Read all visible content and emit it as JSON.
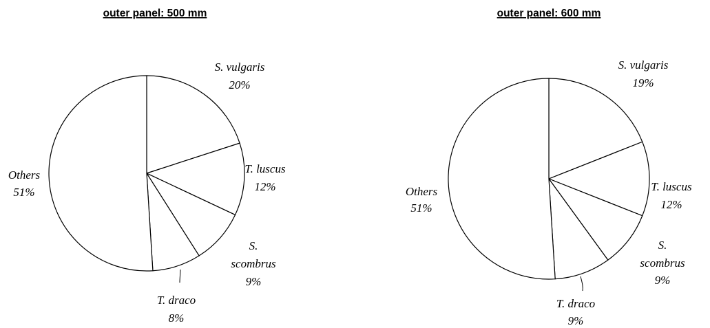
{
  "chart_data": [
    {
      "type": "pie",
      "title": "outer panel: 500 mm",
      "slices": [
        {
          "label_lines": [
            "S. vulgaris"
          ],
          "value": 20,
          "percent_label": "20%"
        },
        {
          "label_lines": [
            "T. luscus"
          ],
          "value": 12,
          "percent_label": "12%"
        },
        {
          "label_lines": [
            "S.",
            "scombrus"
          ],
          "value": 9,
          "percent_label": "9%"
        },
        {
          "label_lines": [
            "T. draco"
          ],
          "value": 8,
          "percent_label": "8%"
        },
        {
          "label_lines": [
            "Others"
          ],
          "value": 51,
          "percent_label": "51%"
        }
      ],
      "slice_fill": "#ffffff",
      "edge_color": "#000000"
    },
    {
      "type": "pie",
      "title": "outer panel: 600 mm",
      "slices": [
        {
          "label_lines": [
            "S. vulgaris"
          ],
          "value": 19,
          "percent_label": "19%"
        },
        {
          "label_lines": [
            "T. luscus"
          ],
          "value": 12,
          "percent_label": "12%"
        },
        {
          "label_lines": [
            "S.",
            "scombrus"
          ],
          "value": 9,
          "percent_label": "9%"
        },
        {
          "label_lines": [
            "T. draco"
          ],
          "value": 9,
          "percent_label": "9%"
        },
        {
          "label_lines": [
            "Others"
          ],
          "value": 51,
          "percent_label": "51%"
        }
      ],
      "slice_fill": "#ffffff",
      "edge_color": "#000000"
    }
  ]
}
